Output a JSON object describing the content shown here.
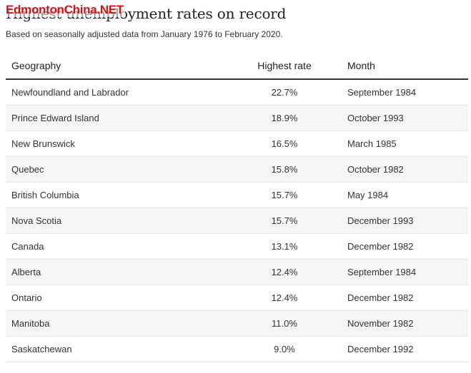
{
  "header": {
    "title": "Highest unemployment rates on record",
    "watermark": "EdmontonChina.NET",
    "subtitle": "Based on seasonally adjusted data from January 1976 to February 2020."
  },
  "table": {
    "columns": [
      "Geography",
      "Highest rate",
      "Month"
    ],
    "rows": [
      {
        "geography": "Newfoundland and Labrador",
        "rate": "22.7%",
        "month": "September 1984"
      },
      {
        "geography": "Prince Edward Island",
        "rate": "18.9%",
        "month": "October 1993"
      },
      {
        "geography": "New Brunswick",
        "rate": "16.5%",
        "month": "March 1985"
      },
      {
        "geography": "Quebec",
        "rate": "15.8%",
        "month": "October 1982"
      },
      {
        "geography": "British Columbia",
        "rate": "15.7%",
        "month": "May 1984"
      },
      {
        "geography": "Nova Scotia",
        "rate": "15.7%",
        "month": "December 1993"
      },
      {
        "geography": "Canada",
        "rate": "13.1%",
        "month": "December 1982"
      },
      {
        "geography": "Alberta",
        "rate": "12.4%",
        "month": "September 1984"
      },
      {
        "geography": "Ontario",
        "rate": "12.4%",
        "month": "December 1982"
      },
      {
        "geography": "Manitoba",
        "rate": "11.0%",
        "month": "November 1982"
      },
      {
        "geography": "Saskatchewan",
        "rate": "9.0%",
        "month": "December 1992"
      }
    ]
  }
}
